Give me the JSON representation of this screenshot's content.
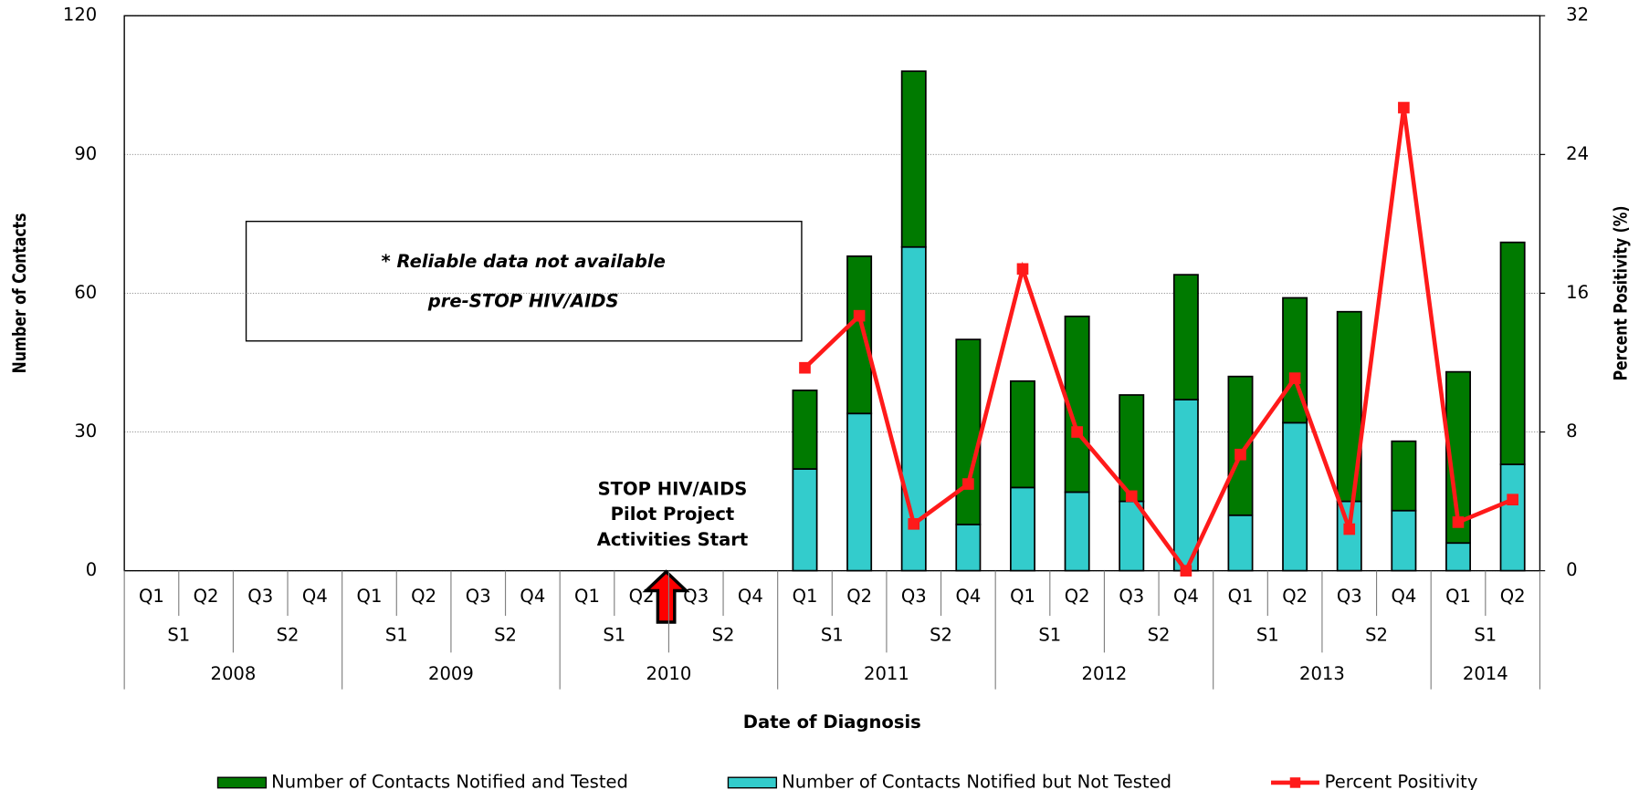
{
  "chart_data": {
    "type": "bar",
    "stacked": true,
    "x_label": "Date of Diagnosis",
    "y_label": "Number of Contacts",
    "y2_label": "Percent Positivity (%)",
    "categories": [
      "Q1",
      "Q2",
      "Q3",
      "Q4",
      "Q1",
      "Q2",
      "Q3",
      "Q4",
      "Q1",
      "Q2",
      "Q3",
      "Q4",
      "Q1",
      "Q2",
      "Q3",
      "Q4",
      "Q1",
      "Q2",
      "Q3",
      "Q4",
      "Q1",
      "Q2",
      "Q3",
      "Q4",
      "Q1",
      "Q2"
    ],
    "halves": [
      "S1",
      "S2",
      "S1",
      "S2",
      "S1",
      "S2",
      "S1",
      "S2",
      "S1",
      "S2",
      "S1",
      "S2",
      "S1"
    ],
    "years": [
      "2008",
      "2009",
      "2010",
      "2011",
      "2012",
      "2013",
      "2014"
    ],
    "series": [
      {
        "name": "Number of Contacts Notified and Tested",
        "color": "#007a00",
        "stack_order": 1,
        "values": [
          null,
          null,
          null,
          null,
          null,
          null,
          null,
          null,
          null,
          null,
          null,
          null,
          17,
          34,
          38,
          40,
          23,
          38,
          23,
          27,
          30,
          27,
          41,
          15,
          37,
          48
        ]
      },
      {
        "name": "Number of Contacts Notified but Not Tested",
        "color": "#33cccc",
        "stack_order": 0,
        "values": [
          null,
          null,
          null,
          null,
          null,
          null,
          null,
          null,
          null,
          null,
          null,
          null,
          22,
          34,
          70,
          10,
          18,
          17,
          15,
          37,
          12,
          32,
          15,
          13,
          6,
          23
        ]
      },
      {
        "name": "Percent Positivity",
        "color": "#ff1a1a",
        "type": "line",
        "axis": "y2",
        "values": [
          null,
          null,
          null,
          null,
          null,
          null,
          null,
          null,
          null,
          null,
          null,
          null,
          11.7,
          14.7,
          2.7,
          5.0,
          17.4,
          8.0,
          4.3,
          0,
          6.7,
          11.1,
          2.4,
          26.7,
          2.8,
          4.1
        ]
      }
    ],
    "ylim": [
      0,
      120
    ],
    "yticks": [
      0,
      30,
      60,
      90,
      120
    ],
    "y2lim": [
      0,
      32
    ],
    "y2ticks": [
      0,
      8,
      16,
      24,
      32
    ],
    "grid": true,
    "legend": "bottom",
    "annotations": [
      {
        "lines": [
          "* Reliable data not available",
          "pre-STOP HIV/AIDS"
        ]
      },
      {
        "lines": [
          "STOP HIV/AIDS",
          "Pilot Project",
          "Activities Start"
        ]
      }
    ]
  }
}
